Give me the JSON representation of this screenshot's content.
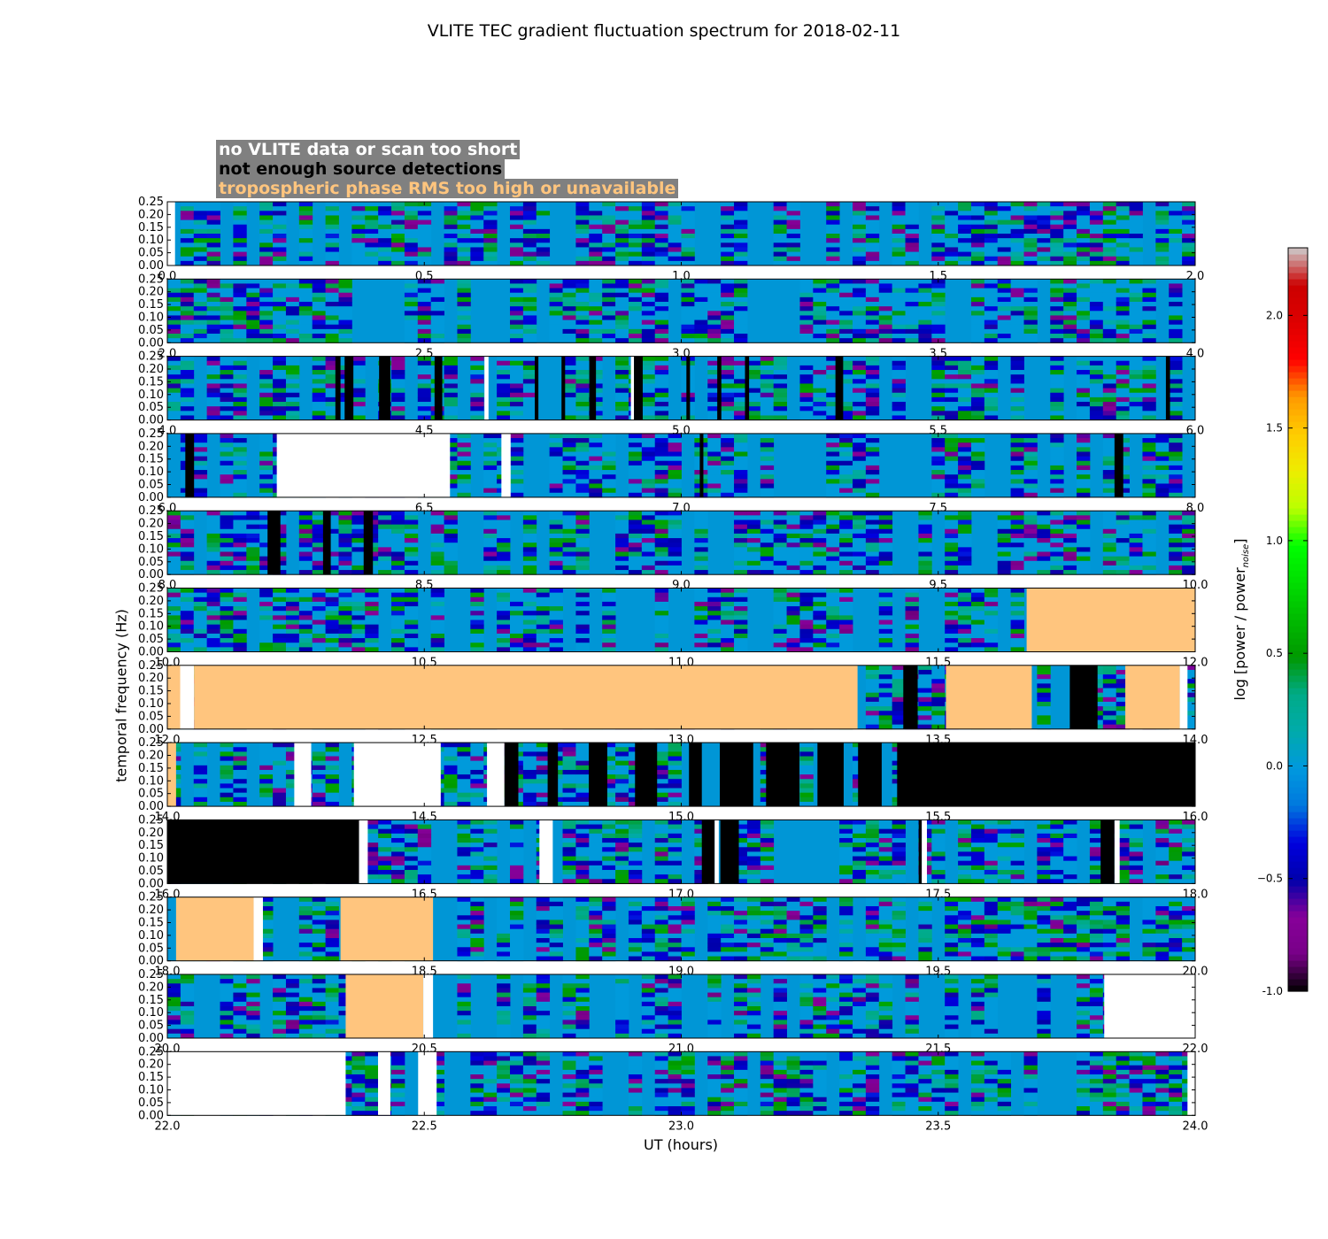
{
  "chart_data": {
    "type": "heatmap",
    "title": "VLITE TEC gradient fluctuation spectrum for 2018-02-11",
    "xlabel": "UT (hours)",
    "ylabel": "temporal frequency (Hz)",
    "colorbar": {
      "label_main": "log [power / power",
      "label_sub": "noise",
      "label_end": "]",
      "range": [
        -1.0,
        2.3
      ],
      "ticks": [
        "-1.0",
        "−0.5",
        "0.0",
        "0.5",
        "1.0",
        "1.5",
        "2.0"
      ],
      "tick_values": [
        -1.0,
        -0.5,
        0.0,
        0.5,
        1.0,
        1.5,
        2.0
      ],
      "colormap": "nipy_spectral"
    },
    "legend": [
      {
        "label": "no VLITE data or scan too short",
        "color": "#ffffff"
      },
      {
        "label": "not enough source detections",
        "color": "#000000"
      },
      {
        "label": "tropospheric phase RMS too high or unavailable",
        "color": "#ffc57e"
      }
    ],
    "y_range": [
      0.0,
      0.25
    ],
    "y_ticks": [
      "0.00",
      "0.05",
      "0.10",
      "0.15",
      "0.20",
      "0.25"
    ],
    "panels": [
      {
        "x_range": [
          0.0,
          2.0
        ],
        "x_ticks": [
          "0.0",
          "0.5",
          "1.0",
          "1.5",
          "2.0"
        ],
        "overlays": [
          {
            "status": "no_data",
            "start": 0.0,
            "end": 0.015
          }
        ]
      },
      {
        "x_range": [
          2.0,
          4.0
        ],
        "x_ticks": [
          "2.0",
          "2.5",
          "3.0",
          "3.5",
          "4.0"
        ],
        "overlays": []
      },
      {
        "x_range": [
          4.0,
          6.0
        ],
        "x_ticks": [
          "4.0",
          "4.5",
          "5.0",
          "5.5",
          "6.0"
        ],
        "overlays": [
          {
            "status": "few_sources",
            "start": 4.327,
            "end": 4.337
          },
          {
            "status": "few_sources",
            "start": 4.345,
            "end": 4.362
          },
          {
            "status": "few_sources",
            "start": 4.412,
            "end": 4.434
          },
          {
            "status": "few_sources",
            "start": 4.52,
            "end": 4.535
          },
          {
            "status": "no_data",
            "start": 4.617,
            "end": 4.625
          },
          {
            "status": "few_sources",
            "start": 4.715,
            "end": 4.722
          },
          {
            "status": "few_sources",
            "start": 4.767,
            "end": 4.774
          },
          {
            "status": "few_sources",
            "start": 4.821,
            "end": 4.834
          },
          {
            "status": "no_data",
            "start": 4.902,
            "end": 4.908
          },
          {
            "status": "few_sources",
            "start": 4.908,
            "end": 4.925
          },
          {
            "status": "few_sources",
            "start": 5.01,
            "end": 5.017
          },
          {
            "status": "few_sources",
            "start": 5.07,
            "end": 5.078
          },
          {
            "status": "few_sources",
            "start": 5.124,
            "end": 5.132
          },
          {
            "status": "few_sources",
            "start": 5.3,
            "end": 5.315
          },
          {
            "status": "few_sources",
            "start": 5.943,
            "end": 5.951
          }
        ]
      },
      {
        "x_range": [
          6.0,
          8.0
        ],
        "x_ticks": [
          "6.0",
          "6.5",
          "7.0",
          "7.5",
          "8.0"
        ],
        "overlays": [
          {
            "status": "few_sources",
            "start": 6.035,
            "end": 6.052
          },
          {
            "status": "no_data",
            "start": 6.213,
            "end": 6.55
          },
          {
            "status": "no_data",
            "start": 6.65,
            "end": 6.668
          },
          {
            "status": "few_sources",
            "start": 7.036,
            "end": 7.043
          },
          {
            "status": "few_sources",
            "start": 7.843,
            "end": 7.86
          }
        ]
      },
      {
        "x_range": [
          8.0,
          10.0
        ],
        "x_ticks": [
          "8.0",
          "8.5",
          "9.0",
          "9.5",
          "10.0"
        ],
        "overlays": [
          {
            "status": "few_sources",
            "start": 8.195,
            "end": 8.22
          },
          {
            "status": "few_sources",
            "start": 8.303,
            "end": 8.318
          },
          {
            "status": "few_sources",
            "start": 8.382,
            "end": 8.4
          }
        ]
      },
      {
        "x_range": [
          10.0,
          12.0
        ],
        "x_ticks": [
          "10.0",
          "10.5",
          "11.0",
          "11.5",
          "12.0"
        ],
        "overlays": [
          {
            "status": "tropo",
            "start": 11.672,
            "end": 12.0
          }
        ]
      },
      {
        "x_range": [
          12.0,
          14.0
        ],
        "x_ticks": [
          "12.0",
          "12.5",
          "13.0",
          "13.5",
          "14.0"
        ],
        "overlays": [
          {
            "status": "tropo",
            "start": 12.0,
            "end": 12.025
          },
          {
            "status": "no_data",
            "start": 12.025,
            "end": 12.052
          },
          {
            "status": "tropo",
            "start": 12.052,
            "end": 13.343
          },
          {
            "status": "few_sources",
            "start": 13.432,
            "end": 13.46
          },
          {
            "status": "tropo",
            "start": 13.515,
            "end": 13.682
          },
          {
            "status": "few_sources",
            "start": 13.756,
            "end": 13.81
          },
          {
            "status": "tropo",
            "start": 13.864,
            "end": 13.97
          },
          {
            "status": "no_data",
            "start": 13.97,
            "end": 13.985
          }
        ]
      },
      {
        "x_range": [
          14.0,
          16.0
        ],
        "x_ticks": [
          "14.0",
          "14.5",
          "15.0",
          "15.5",
          "16.0"
        ],
        "overlays": [
          {
            "status": "tropo",
            "start": 14.0,
            "end": 14.017
          },
          {
            "status": "no_data",
            "start": 14.247,
            "end": 14.28
          },
          {
            "status": "no_data",
            "start": 14.363,
            "end": 14.532
          },
          {
            "status": "no_data",
            "start": 14.622,
            "end": 14.656
          },
          {
            "status": "few_sources",
            "start": 14.656,
            "end": 14.683
          },
          {
            "status": "few_sources",
            "start": 14.74,
            "end": 14.76
          },
          {
            "status": "few_sources",
            "start": 14.82,
            "end": 14.856
          },
          {
            "status": "few_sources",
            "start": 14.91,
            "end": 14.953
          },
          {
            "status": "few_sources",
            "start": 15.015,
            "end": 15.04
          },
          {
            "status": "few_sources",
            "start": 15.075,
            "end": 15.14
          },
          {
            "status": "few_sources",
            "start": 15.165,
            "end": 15.23
          },
          {
            "status": "few_sources",
            "start": 15.265,
            "end": 15.316
          },
          {
            "status": "few_sources",
            "start": 15.344,
            "end": 15.39
          },
          {
            "status": "few_sources",
            "start": 15.42,
            "end": 16.0
          }
        ]
      },
      {
        "x_range": [
          16.0,
          18.0
        ],
        "x_ticks": [
          "16.0",
          "16.5",
          "17.0",
          "17.5",
          "18.0"
        ],
        "overlays": [
          {
            "status": "few_sources",
            "start": 16.0,
            "end": 16.373
          },
          {
            "status": "no_data",
            "start": 16.373,
            "end": 16.39
          },
          {
            "status": "no_data",
            "start": 16.724,
            "end": 16.75
          },
          {
            "status": "few_sources",
            "start": 17.04,
            "end": 17.065
          },
          {
            "status": "no_data",
            "start": 17.065,
            "end": 17.073
          },
          {
            "status": "few_sources",
            "start": 17.076,
            "end": 17.112
          },
          {
            "status": "few_sources",
            "start": 17.462,
            "end": 17.468
          },
          {
            "status": "no_data",
            "start": 17.468,
            "end": 17.478
          },
          {
            "status": "few_sources",
            "start": 17.816,
            "end": 17.843
          },
          {
            "status": "no_data",
            "start": 17.843,
            "end": 17.853
          }
        ]
      },
      {
        "x_range": [
          18.0,
          20.0
        ],
        "x_ticks": [
          "18.0",
          "18.5",
          "19.0",
          "19.5",
          "20.0"
        ],
        "overlays": [
          {
            "status": "tropo",
            "start": 18.017,
            "end": 18.168
          },
          {
            "status": "no_data",
            "start": 18.168,
            "end": 18.186
          },
          {
            "status": "tropo",
            "start": 18.337,
            "end": 18.517
          }
        ]
      },
      {
        "x_range": [
          20.0,
          22.0
        ],
        "x_ticks": [
          "20.0",
          "20.5",
          "21.0",
          "21.5",
          "22.0"
        ],
        "overlays": [
          {
            "status": "tropo",
            "start": 20.347,
            "end": 20.498
          },
          {
            "status": "no_data",
            "start": 20.498,
            "end": 20.517
          },
          {
            "status": "no_data",
            "start": 21.823,
            "end": 22.0
          }
        ]
      },
      {
        "x_range": [
          22.0,
          24.0
        ],
        "x_ticks": [
          "22.0",
          "22.5",
          "23.0",
          "23.5",
          "24.0"
        ],
        "overlays": [
          {
            "status": "no_data",
            "start": 22.0,
            "end": 22.347
          },
          {
            "status": "no_data",
            "start": 22.41,
            "end": 22.434
          },
          {
            "status": "no_data",
            "start": 22.488,
            "end": 22.524
          },
          {
            "status": "no_data",
            "start": 23.985,
            "end": 24.0
          }
        ]
      }
    ]
  }
}
